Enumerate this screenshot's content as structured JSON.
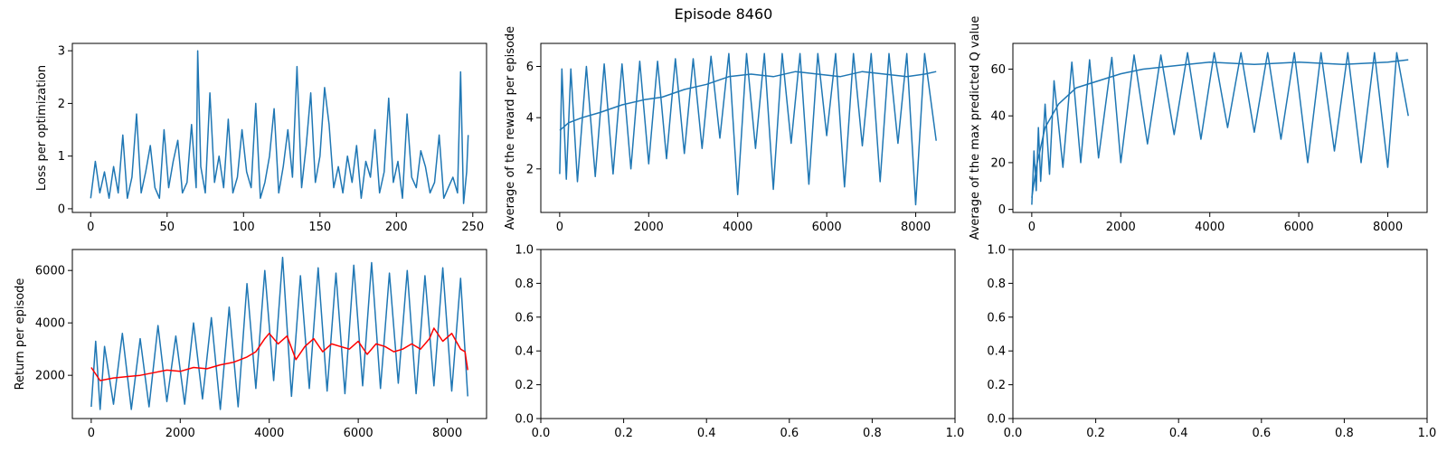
{
  "figure": {
    "title": "Episode 8460"
  },
  "chart_data": [
    {
      "type": "line",
      "panel": "top-left",
      "xlabel": "",
      "ylabel": "Loss per optimization",
      "xlim": [
        -12,
        259
      ],
      "ylim": [
        -0.07,
        3.14
      ],
      "xticks": [
        0,
        50,
        100,
        150,
        200,
        250
      ],
      "yticks": [
        0,
        1,
        2,
        3
      ],
      "grid": false,
      "series": [
        {
          "color": "#1f77b4",
          "x": [
            0,
            3,
            6,
            9,
            12,
            15,
            18,
            21,
            24,
            27,
            30,
            33,
            36,
            39,
            42,
            45,
            48,
            51,
            54,
            57,
            60,
            63,
            66,
            69,
            70,
            72,
            75,
            78,
            81,
            84,
            87,
            90,
            93,
            96,
            99,
            102,
            105,
            108,
            111,
            114,
            117,
            120,
            123,
            126,
            129,
            132,
            135,
            138,
            141,
            144,
            147,
            150,
            153,
            156,
            159,
            162,
            165,
            168,
            171,
            174,
            177,
            180,
            183,
            186,
            189,
            192,
            195,
            198,
            201,
            204,
            207,
            210,
            213,
            216,
            219,
            222,
            225,
            228,
            231,
            234,
            237,
            240,
            242,
            244,
            246,
            247
          ],
          "y": [
            0.2,
            0.9,
            0.3,
            0.7,
            0.2,
            0.8,
            0.3,
            1.4,
            0.2,
            0.6,
            1.8,
            0.3,
            0.7,
            1.2,
            0.4,
            0.2,
            1.5,
            0.4,
            0.9,
            1.3,
            0.3,
            0.5,
            1.6,
            0.4,
            3.0,
            0.8,
            0.3,
            2.2,
            0.5,
            1.0,
            0.4,
            1.7,
            0.3,
            0.6,
            1.5,
            0.7,
            0.4,
            2.0,
            0.2,
            0.5,
            1.0,
            1.9,
            0.3,
            0.8,
            1.5,
            0.6,
            2.7,
            0.4,
            1.2,
            2.2,
            0.5,
            1.0,
            2.3,
            1.6,
            0.4,
            0.8,
            0.3,
            1.0,
            0.5,
            1.2,
            0.2,
            0.9,
            0.6,
            1.5,
            0.3,
            0.7,
            2.1,
            0.5,
            0.9,
            0.2,
            1.8,
            0.6,
            0.4,
            1.1,
            0.8,
            0.3,
            0.5,
            1.4,
            0.2,
            0.4,
            0.6,
            0.3,
            2.6,
            0.1,
            0.7,
            1.4
          ]
        }
      ]
    },
    {
      "type": "line",
      "panel": "top-middle",
      "xlabel": "",
      "ylabel": "Average of the reward per episode",
      "xlim": [
        -424,
        8883
      ],
      "ylim": [
        0.3,
        6.9
      ],
      "xticks": [
        0,
        2000,
        4000,
        6000,
        8000
      ],
      "yticks": [
        2,
        4,
        6
      ],
      "grid": false,
      "series": [
        {
          "color": "#1f77b4",
          "x": [
            0,
            50,
            150,
            250,
            400,
            600,
            800,
            1000,
            1200,
            1400,
            1600,
            1800,
            2000,
            2200,
            2400,
            2600,
            2800,
            3000,
            3200,
            3400,
            3600,
            3800,
            4000,
            4200,
            4400,
            4600,
            4800,
            5000,
            5200,
            5400,
            5600,
            5800,
            6000,
            6200,
            6400,
            6600,
            6800,
            7000,
            7200,
            7400,
            7600,
            7800,
            8000,
            8200,
            8460
          ],
          "y": [
            1.8,
            5.9,
            1.6,
            5.9,
            1.5,
            6.0,
            1.7,
            6.1,
            1.8,
            6.1,
            2.0,
            6.2,
            2.2,
            6.2,
            2.4,
            6.3,
            2.6,
            6.3,
            2.8,
            6.4,
            3.2,
            6.5,
            1.0,
            6.5,
            2.8,
            6.5,
            1.2,
            6.5,
            3.0,
            6.5,
            1.4,
            6.5,
            3.3,
            6.5,
            1.3,
            6.5,
            2.9,
            6.5,
            1.5,
            6.5,
            3.0,
            6.5,
            0.6,
            6.5,
            3.1
          ]
        },
        {
          "color": "#1f77b4",
          "x": [
            0,
            200,
            500,
            900,
            1400,
            1900,
            2300,
            2800,
            3300,
            3800,
            4300,
            4800,
            5300,
            5800,
            6300,
            6800,
            7300,
            7800,
            8200,
            8460
          ],
          "y": [
            3.5,
            3.8,
            4.0,
            4.2,
            4.5,
            4.7,
            4.8,
            5.1,
            5.3,
            5.6,
            5.7,
            5.6,
            5.8,
            5.7,
            5.6,
            5.8,
            5.7,
            5.6,
            5.7,
            5.8
          ]
        }
      ]
    },
    {
      "type": "line",
      "panel": "top-right",
      "xlabel": "",
      "ylabel": "Average of the max predicted Q value",
      "xlim": [
        -424,
        8883
      ],
      "ylim": [
        -1.3,
        71
      ],
      "xticks": [
        0,
        2000,
        4000,
        6000,
        8000
      ],
      "yticks": [
        0,
        20,
        40,
        60
      ],
      "grid": false,
      "series": [
        {
          "color": "#1f77b4",
          "x": [
            0,
            50,
            100,
            150,
            200,
            300,
            400,
            500,
            700,
            900,
            1100,
            1300,
            1500,
            1800,
            2000,
            2300,
            2600,
            2900,
            3200,
            3500,
            3800,
            4100,
            4400,
            4700,
            5000,
            5300,
            5600,
            5900,
            6200,
            6500,
            6800,
            7100,
            7400,
            7700,
            8000,
            8200,
            8460
          ],
          "y": [
            2,
            25,
            8,
            35,
            12,
            45,
            15,
            55,
            18,
            63,
            20,
            64,
            22,
            65,
            20,
            66,
            28,
            66,
            32,
            67,
            30,
            67,
            35,
            67,
            33,
            67,
            30,
            67,
            20,
            67,
            25,
            67,
            20,
            67,
            18,
            67,
            40
          ]
        },
        {
          "color": "#1f77b4",
          "x": [
            0,
            100,
            300,
            600,
            1000,
            1500,
            2000,
            2500,
            3000,
            3500,
            4000,
            5000,
            6000,
            7000,
            8000,
            8460
          ],
          "y": [
            5,
            18,
            35,
            45,
            52,
            55,
            58,
            60,
            61,
            62,
            63,
            62,
            63,
            62,
            63,
            64
          ]
        }
      ]
    },
    {
      "type": "line",
      "panel": "bottom-left",
      "xlabel": "",
      "ylabel": "Return per episode",
      "xlim": [
        -424,
        8883
      ],
      "ylim": [
        350,
        6800
      ],
      "xticks": [
        0,
        2000,
        4000,
        6000,
        8000
      ],
      "yticks": [
        2000,
        4000,
        6000
      ],
      "grid": false,
      "series": [
        {
          "color": "#1f77b4",
          "x": [
            0,
            100,
            200,
            300,
            500,
            700,
            900,
            1100,
            1300,
            1500,
            1700,
            1900,
            2100,
            2300,
            2500,
            2700,
            2900,
            3100,
            3300,
            3500,
            3700,
            3900,
            4100,
            4300,
            4500,
            4700,
            4900,
            5100,
            5300,
            5500,
            5700,
            5900,
            6100,
            6300,
            6500,
            6700,
            6900,
            7100,
            7300,
            7500,
            7700,
            7900,
            8100,
            8300,
            8460
          ],
          "y": [
            800,
            3300,
            700,
            3100,
            900,
            3600,
            700,
            3400,
            800,
            3900,
            1000,
            3500,
            900,
            4000,
            1100,
            4200,
            700,
            4600,
            800,
            5500,
            1500,
            6000,
            1800,
            6500,
            1200,
            5800,
            1500,
            6100,
            1400,
            5900,
            1300,
            6200,
            1600,
            6300,
            1500,
            5900,
            1700,
            6000,
            1300,
            5800,
            1600,
            6100,
            1400,
            5700,
            1200
          ]
        },
        {
          "color": "#ff0000",
          "x": [
            0,
            200,
            500,
            800,
            1100,
            1400,
            1700,
            2000,
            2300,
            2600,
            2900,
            3200,
            3500,
            3700,
            3900,
            4000,
            4200,
            4400,
            4600,
            4800,
            5000,
            5200,
            5400,
            5600,
            5800,
            6000,
            6200,
            6400,
            6600,
            6800,
            7000,
            7200,
            7400,
            7600,
            7700,
            7900,
            8100,
            8300,
            8400,
            8460
          ],
          "y": [
            2300,
            1800,
            1900,
            1950,
            2000,
            2100,
            2200,
            2150,
            2300,
            2250,
            2400,
            2500,
            2700,
            2900,
            3400,
            3600,
            3200,
            3500,
            2600,
            3100,
            3400,
            2900,
            3200,
            3100,
            3000,
            3300,
            2800,
            3200,
            3100,
            2900,
            3000,
            3200,
            3000,
            3400,
            3800,
            3300,
            3600,
            3000,
            2900,
            2200
          ]
        }
      ]
    },
    {
      "type": "line",
      "panel": "bottom-middle",
      "xlabel": "",
      "ylabel": "",
      "xlim": [
        0,
        1
      ],
      "ylim": [
        0,
        1
      ],
      "xticks": [
        "0.0",
        "0.2",
        "0.4",
        "0.6",
        "0.8",
        "1.0"
      ],
      "yticks": [
        "0.0",
        "0.2",
        "0.4",
        "0.6",
        "0.8",
        "1.0"
      ],
      "grid": false,
      "series": []
    },
    {
      "type": "line",
      "panel": "bottom-right",
      "xlabel": "",
      "ylabel": "",
      "xlim": [
        0,
        1
      ],
      "ylim": [
        0,
        1
      ],
      "xticks": [
        "0.0",
        "0.2",
        "0.4",
        "0.6",
        "0.8",
        "1.0"
      ],
      "yticks": [
        "0.0",
        "0.2",
        "0.4",
        "0.6",
        "0.8",
        "1.0"
      ],
      "grid": false,
      "series": []
    }
  ]
}
